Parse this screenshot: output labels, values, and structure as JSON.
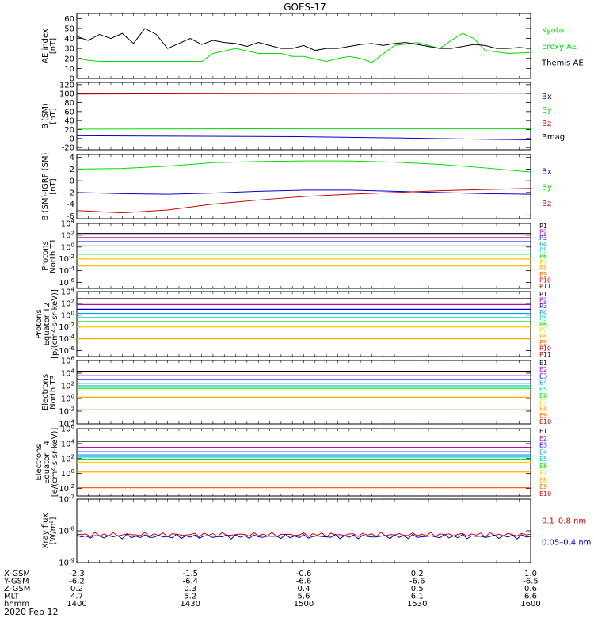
{
  "title": "GOES-17",
  "date": "2020 Feb 12",
  "colors": {
    "black": "#000000",
    "green": "#00dd00",
    "blue": "#0000cc",
    "red": "#cc0000",
    "ch": [
      "#000000",
      "#cc00aa",
      "#0000ff",
      "#0099ff",
      "#00cccc",
      "#00dd00",
      "#ffcc00",
      "#ffaa00",
      "#ff6600",
      "#cc0000",
      "#880000"
    ]
  },
  "chart_data": [
    {
      "type": "line",
      "id": "ae",
      "ylabel": [
        "AE index",
        "[nT]"
      ],
      "ylim": [
        0,
        65
      ],
      "yticks": [
        "0",
        "10",
        "20",
        "30",
        "40",
        "50",
        "60"
      ],
      "legend": [
        {
          "text": "Kyoto",
          "color": "green"
        },
        {
          "text": "proxy AE",
          "color": "green"
        },
        {
          "text": "Themis AE",
          "color": "black"
        }
      ],
      "series": [
        {
          "name": "Kyoto proxy AE",
          "color": "green",
          "x": [
            0,
            5,
            10,
            20,
            30,
            40,
            50,
            55,
            60,
            70,
            80,
            90,
            95,
            100,
            110,
            115,
            120,
            125,
            130,
            140,
            150,
            160,
            165,
            170,
            175,
            180,
            190,
            200
          ],
          "y": [
            20,
            18,
            17,
            17,
            17,
            17,
            17,
            17,
            25,
            30,
            25,
            25,
            22,
            22,
            17,
            20,
            22,
            20,
            16,
            33,
            36,
            30,
            38,
            45,
            40,
            28,
            25,
            26
          ]
        },
        {
          "name": "Themis AE",
          "color": "black",
          "x": [
            0,
            5,
            10,
            15,
            20,
            25,
            30,
            35,
            40,
            45,
            50,
            55,
            60,
            65,
            70,
            75,
            80,
            85,
            90,
            95,
            100,
            105,
            110,
            115,
            120,
            125,
            130,
            135,
            140,
            145,
            150,
            155,
            160,
            165,
            170,
            175,
            180,
            185,
            190,
            195,
            200
          ],
          "y": [
            42,
            38,
            44,
            40,
            45,
            35,
            50,
            44,
            30,
            35,
            40,
            34,
            38,
            36,
            35,
            32,
            36,
            33,
            30,
            30,
            33,
            28,
            30,
            30,
            32,
            34,
            35,
            33,
            35,
            36,
            34,
            32,
            30,
            30,
            32,
            34,
            33,
            30,
            30,
            31,
            30
          ]
        }
      ]
    },
    {
      "type": "line",
      "id": "bsm",
      "ylabel": [
        "B (SM)",
        "[nT]"
      ],
      "ylim": [
        -25,
        125
      ],
      "yticks": [
        "-20",
        "0",
        "20",
        "40",
        "60",
        "80",
        "100",
        "120"
      ],
      "legend": [
        {
          "text": "Bx",
          "color": "blue"
        },
        {
          "text": "By",
          "color": "green"
        },
        {
          "text": "Bz",
          "color": "red"
        },
        {
          "text": "Bmag",
          "color": "black"
        }
      ],
      "series": [
        {
          "name": "Bmag",
          "color": "black",
          "x": [
            0,
            200
          ],
          "y": [
            100,
            101
          ]
        },
        {
          "name": "Bz",
          "color": "red",
          "x": [
            0,
            100,
            200
          ],
          "y": [
            99,
            100,
            101
          ]
        },
        {
          "name": "By",
          "color": "green",
          "x": [
            0,
            100,
            200
          ],
          "y": [
            21,
            22,
            22
          ]
        },
        {
          "name": "Bx",
          "color": "blue",
          "x": [
            0,
            100,
            200
          ],
          "y": [
            6,
            4,
            -3
          ]
        }
      ]
    },
    {
      "type": "line",
      "id": "bigrf",
      "ylabel": [
        "B (SM)-IGRF (SM)",
        "[nT]"
      ],
      "ylim": [
        -6.5,
        4.5
      ],
      "yticks": [
        "-6",
        "-4",
        "-2",
        "0",
        "2",
        "4"
      ],
      "legend": [
        {
          "text": "Bx",
          "color": "blue"
        },
        {
          "text": "By",
          "color": "green"
        },
        {
          "text": "Bz",
          "color": "red"
        }
      ],
      "series": [
        {
          "name": "By",
          "color": "green",
          "x": [
            0,
            20,
            40,
            60,
            80,
            100,
            120,
            140,
            160,
            180,
            200
          ],
          "y": [
            2,
            2.1,
            2.5,
            3.1,
            3.3,
            3.4,
            3.4,
            3.2,
            2.8,
            2.2,
            1.5
          ]
        },
        {
          "name": "Bx",
          "color": "blue",
          "x": [
            0,
            20,
            40,
            60,
            80,
            100,
            120,
            140,
            160,
            180,
            200
          ],
          "y": [
            -2.0,
            -2.2,
            -2.3,
            -2.1,
            -1.8,
            -1.6,
            -1.6,
            -1.8,
            -2.0,
            -2.2,
            -2.3
          ]
        },
        {
          "name": "Bz",
          "color": "red",
          "x": [
            0,
            20,
            40,
            60,
            80,
            100,
            120,
            140,
            160,
            180,
            200
          ],
          "y": [
            -5.1,
            -5.5,
            -5.0,
            -4.0,
            -3.3,
            -2.7,
            -2.3,
            -2.0,
            -1.7,
            -1.5,
            -1.3
          ]
        }
      ]
    },
    {
      "type": "line",
      "id": "protons_t1",
      "ylabel": [
        "Protons",
        "North T1"
      ],
      "ylog": true,
      "ylim": [
        -7,
        4
      ],
      "yticks": [
        "10^4",
        "10^2",
        "10^0",
        "10^-2",
        "10^-4",
        "10^-6"
      ],
      "channels": [
        "P1",
        "P2",
        "P3",
        "P4",
        "P5",
        "P6",
        "P7",
        "P8",
        "P9",
        "P10",
        "P11"
      ],
      "levels": [
        2.3,
        1.6,
        0.9,
        0.2,
        -0.5,
        -1.2,
        -2.0,
        -3.2,
        null,
        null,
        null
      ]
    },
    {
      "type": "line",
      "id": "protons_t2",
      "ylabel": [
        "Protons",
        "Equator T2",
        "[p/(cm²-s-sr-keV)]"
      ],
      "ylog": true,
      "ylim": [
        -7,
        4
      ],
      "yticks": [
        "10^4",
        "10^2",
        "10^0",
        "10^-2",
        "10^-4",
        "10^-6"
      ],
      "channels": [
        "P1",
        "P2",
        "P3",
        "P4",
        "P5",
        "P6",
        "P7",
        "P8",
        "P9",
        "P10",
        "P11"
      ],
      "levels": [
        2.8,
        1.8,
        1.0,
        0.3,
        -0.4,
        -1.1,
        -2.0,
        -4.0,
        null,
        null,
        null
      ]
    },
    {
      "type": "line",
      "id": "electrons_t3",
      "ylabel": [
        "Electrons",
        "North T3"
      ],
      "ylog": true,
      "ylim": [
        -4,
        6
      ],
      "yticks": [
        "10^6",
        "10^4",
        "10^2",
        "10^0",
        "10^-2",
        "10^-4"
      ],
      "channels": [
        "E1",
        "E2",
        "E3",
        "E4",
        "E5",
        "E6",
        "E7",
        "E8",
        "E9",
        "E10"
      ],
      "levels": [
        4.3,
        3.6,
        3.0,
        2.4,
        2.0,
        1.6,
        1.2,
        0.2,
        -1.8,
        null
      ]
    },
    {
      "type": "line",
      "id": "electrons_t4",
      "ylabel": [
        "Electrons",
        "Equator T4",
        "[e/(cm²-s-sr-keV)]"
      ],
      "ylog": true,
      "ylim": [
        -3,
        6
      ],
      "yticks": [
        "10^6",
        "10^4",
        "10^2",
        "10^0",
        "10^-2"
      ],
      "channels": [
        "E1",
        "E2",
        "E3",
        "E4",
        "E5",
        "E6",
        "E7",
        "E8",
        "E9",
        "E10"
      ],
      "levels": [
        4.3,
        3.5,
        2.9,
        2.5,
        2.2,
        1.9,
        1.5,
        0.2,
        -1.9,
        null
      ]
    },
    {
      "type": "line",
      "id": "xray",
      "ylabel": [
        "Xray flux",
        "[W/m²]"
      ],
      "ylog": true,
      "ylim": [
        -9,
        -7
      ],
      "yticks": [
        "10^-7",
        "10^-8",
        "10^-9"
      ],
      "legend": [
        {
          "text": "0.1–0.8 nm",
          "color": "red"
        },
        {
          "text": "0.05–0.4 nm",
          "color": "blue"
        }
      ],
      "series": [
        {
          "name": "0.1–0.8 nm",
          "color": "red",
          "level": -8.12
        },
        {
          "name": "0.05–0.4 nm",
          "color": "blue",
          "level": -8.18
        }
      ]
    }
  ],
  "xaxis": {
    "rows": [
      {
        "label": "X-GSM",
        "values": [
          "-2.3",
          "-1.5",
          "-0.6",
          "0.2",
          "1.0"
        ]
      },
      {
        "label": "Y-GSM",
        "values": [
          "-6.2",
          "-6.4",
          "-6.6",
          "-6.6",
          "-6.5"
        ]
      },
      {
        "label": "Z-GSM",
        "values": [
          "0.2",
          "0.3",
          "0.4",
          "0.5",
          "0.6"
        ]
      },
      {
        "label": "MLT",
        "values": [
          "4.7",
          "5.2",
          "5.6",
          "6.1",
          "6.6"
        ]
      },
      {
        "label": "hhmm",
        "values": [
          "1400",
          "1430",
          "1500",
          "1530",
          "1600"
        ]
      }
    ]
  }
}
